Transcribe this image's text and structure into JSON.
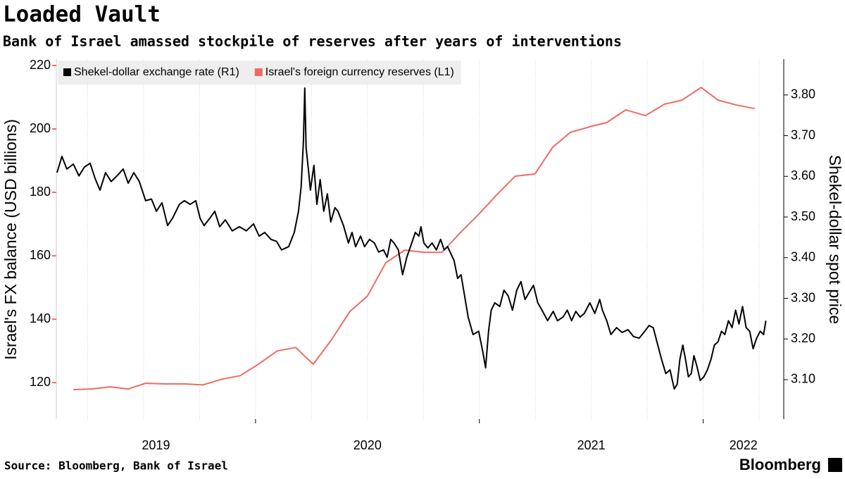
{
  "chart_data": {
    "type": "line",
    "title": "Loaded Vault",
    "subtitle": "Bank of Israel amassed stockpile of reserves after years of interventions",
    "y_label": "Israel's FX balance (USD billions)",
    "y2_label": "Shekel-dollar spot price",
    "source": "Source: Bloomberg, Bank of Israel",
    "logo": "Bloomberg",
    "xlim": [
      2019.11,
      2022.36
    ],
    "xticks": [
      {
        "value": 2019,
        "label": "2019"
      },
      {
        "value": 2020,
        "label": "2020"
      },
      {
        "value": 2021,
        "label": "2021"
      },
      {
        "value": 2022,
        "label": "2022"
      }
    ],
    "xminorticks": [
      2019.25,
      2019.5,
      2019.75,
      2020,
      2020.25,
      2020.5,
      2020.75,
      2021,
      2021.25,
      2021.5,
      2021.75,
      2022,
      2022.25
    ],
    "ylim": [
      108.5,
      222
    ],
    "yticks": [
      120,
      140,
      160,
      180,
      200,
      220
    ],
    "y2lim": [
      3.003,
      3.888
    ],
    "y2ticks": [
      {
        "value": 3.1,
        "label": "3.10"
      },
      {
        "value": 3.2,
        "label": "3.20"
      },
      {
        "value": 3.3,
        "label": "3.30"
      },
      {
        "value": 3.4,
        "label": "3.40"
      },
      {
        "value": 3.5,
        "label": "3.50"
      },
      {
        "value": 3.6,
        "label": "3.60"
      },
      {
        "value": 3.7,
        "label": "3.70"
      },
      {
        "value": 3.8,
        "label": "3.80"
      }
    ],
    "grid": true,
    "legend": "top-left",
    "series": [
      {
        "name": "Shekel-dollar exchange rate (R1)",
        "color": "#000000",
        "axis": "y2",
        "x": [
          2019.113,
          2019.135,
          2019.157,
          2019.186,
          2019.211,
          2019.236,
          2019.261,
          2019.283,
          2019.305,
          2019.33,
          2019.355,
          2019.381,
          2019.409,
          2019.431,
          2019.456,
          2019.481,
          2019.509,
          2019.535,
          2019.557,
          2019.582,
          2019.607,
          2019.629,
          2019.66,
          2019.682,
          2019.708,
          2019.733,
          2019.752,
          2019.77,
          2019.796,
          2019.818,
          2019.84,
          2019.865,
          2019.896,
          2019.928,
          2019.959,
          2019.991,
          2020.016,
          2020.041,
          2020.069,
          2020.094,
          2020.116,
          2020.148,
          2020.173,
          2020.192,
          2020.204,
          2020.214,
          2020.22,
          2020.226,
          2020.236,
          2020.245,
          2020.261,
          2020.274,
          2020.289,
          2020.305,
          2020.321,
          2020.336,
          2020.355,
          2020.368,
          2020.393,
          2020.415,
          2020.431,
          2020.447,
          2020.469,
          2020.487,
          2020.509,
          2020.531,
          2020.55,
          2020.572,
          2020.588,
          2020.604,
          2020.619,
          2020.638,
          2020.657,
          2020.676,
          2020.698,
          2020.714,
          2020.73,
          2020.739,
          2020.752,
          2020.77,
          2020.789,
          2020.808,
          2020.827,
          2020.843,
          2020.858,
          2020.887,
          2020.903,
          2020.918,
          2020.934,
          2020.95,
          2020.972,
          2020.997,
          2021.016,
          2021.028,
          2021.041,
          2021.053,
          2021.069,
          2021.091,
          2021.11,
          2021.129,
          2021.148,
          2021.167,
          2021.186,
          2021.204,
          2021.223,
          2021.242,
          2021.261,
          2021.28,
          2021.305,
          2021.33,
          2021.349,
          2021.374,
          2021.393,
          2021.412,
          2021.431,
          2021.45,
          2021.469,
          2021.494,
          2021.516,
          2021.538,
          2021.55,
          2021.569,
          2021.588,
          2021.613,
          2021.638,
          2021.664,
          2021.689,
          2021.714,
          2021.739,
          2021.758,
          2021.777,
          2021.796,
          2021.814,
          2021.833,
          2021.852,
          2021.871,
          2021.884,
          2021.896,
          2021.909,
          2021.921,
          2021.934,
          2021.947,
          2021.959,
          2021.972,
          2021.987,
          2022.003,
          2022.019,
          2022.035,
          2022.05,
          2022.066,
          2022.082,
          2022.097,
          2022.113,
          2022.129,
          2022.145,
          2022.16,
          2022.176,
          2022.192,
          2022.208,
          2022.223,
          2022.239,
          2022.255,
          2022.27,
          2022.28
        ],
        "values": [
          3.609,
          3.649,
          3.618,
          3.63,
          3.601,
          3.623,
          3.632,
          3.595,
          3.566,
          3.609,
          3.587,
          3.601,
          3.618,
          3.583,
          3.609,
          3.587,
          3.54,
          3.544,
          3.514,
          3.535,
          3.479,
          3.497,
          3.531,
          3.54,
          3.531,
          3.54,
          3.497,
          3.479,
          3.497,
          3.514,
          3.476,
          3.493,
          3.466,
          3.476,
          3.466,
          3.483,
          3.453,
          3.462,
          3.445,
          3.44,
          3.419,
          3.427,
          3.462,
          3.514,
          3.575,
          3.687,
          3.817,
          3.67,
          3.618,
          3.566,
          3.627,
          3.531,
          3.592,
          3.514,
          3.557,
          3.488,
          3.523,
          3.514,
          3.479,
          3.436,
          3.462,
          3.427,
          3.453,
          3.427,
          3.445,
          3.436,
          3.414,
          3.419,
          3.401,
          3.445,
          3.436,
          3.419,
          3.358,
          3.401,
          3.436,
          3.462,
          3.453,
          3.476,
          3.436,
          3.424,
          3.436,
          3.419,
          3.445,
          3.419,
          3.427,
          3.393,
          3.349,
          3.358,
          3.306,
          3.254,
          3.211,
          3.219,
          3.167,
          3.129,
          3.219,
          3.271,
          3.289,
          3.28,
          3.32,
          3.306,
          3.271,
          3.32,
          3.341,
          3.297,
          3.315,
          3.332,
          3.289,
          3.271,
          3.245,
          3.268,
          3.245,
          3.254,
          3.271,
          3.245,
          3.268,
          3.254,
          3.263,
          3.289,
          3.263,
          3.297,
          3.271,
          3.245,
          3.211,
          3.228,
          3.216,
          3.223,
          3.206,
          3.202,
          3.219,
          3.233,
          3.228,
          3.188,
          3.15,
          3.115,
          3.124,
          3.077,
          3.089,
          3.15,
          3.185,
          3.15,
          3.107,
          3.115,
          3.159,
          3.133,
          3.098,
          3.107,
          3.124,
          3.15,
          3.185,
          3.193,
          3.219,
          3.211,
          3.245,
          3.228,
          3.271,
          3.237,
          3.28,
          3.228,
          3.219,
          3.176,
          3.202,
          3.219,
          3.211,
          3.245
        ]
      },
      {
        "name": "Israel's foreign currency reserves (L1)",
        "color": "#ee6b64",
        "axis": "y",
        "x": [
          2019.186,
          2019.267,
          2019.352,
          2019.431,
          2019.509,
          2019.597,
          2019.682,
          2019.764,
          2019.849,
          2019.931,
          2020.013,
          2020.097,
          2020.179,
          2020.258,
          2020.34,
          2020.421,
          2020.5,
          2020.582,
          2020.667,
          2020.752,
          2020.833,
          2020.915,
          2020.997,
          2021.079,
          2021.16,
          2021.248,
          2021.327,
          2021.406,
          2021.494,
          2021.569,
          2021.654,
          2021.742,
          2021.827,
          2021.906,
          2021.991,
          2022.066,
          2022.145,
          2022.23
        ],
        "values": [
          117.8,
          118.0,
          118.7,
          118.0,
          119.8,
          119.6,
          119.6,
          119.3,
          121.1,
          122.2,
          125.8,
          130.0,
          131.1,
          125.8,
          133.6,
          142.4,
          147.3,
          157.8,
          161.8,
          161.1,
          161.1,
          167.3,
          173.1,
          179.3,
          185.1,
          185.8,
          194.2,
          198.9,
          200.7,
          202.0,
          206.0,
          204.2,
          207.8,
          209.1,
          213.1,
          209.1,
          207.6,
          206.4
        ]
      }
    ]
  }
}
